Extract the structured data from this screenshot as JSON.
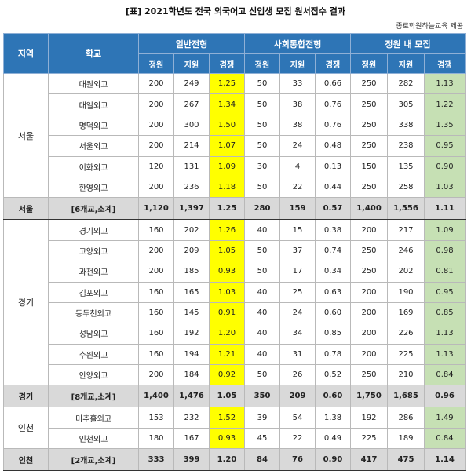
{
  "title": "[표] 2021학년도 전국 외국어고 신입생 모집 원서접수 결과",
  "source": "종로학원하늘교육 제공",
  "headers": {
    "region": "지역",
    "school": "학교",
    "groups": [
      "일반전형",
      "사회통합전형",
      "정원 내 모집"
    ],
    "sub": [
      "정원",
      "지원",
      "경쟁"
    ]
  },
  "colors": {
    "header_bg": "#2e75b6",
    "highlight_yellow": "#ffff00",
    "highlight_green": "#c6e0b4",
    "subtotal_bg": "#d9d9d9"
  },
  "regions": [
    {
      "name": "서울",
      "schools": [
        {
          "name": "대원외고",
          "g": [
            "200",
            "249",
            "1.25"
          ],
          "s": [
            "50",
            "33",
            "0.66"
          ],
          "t": [
            "250",
            "282",
            "1.13"
          ]
        },
        {
          "name": "대일외고",
          "g": [
            "200",
            "267",
            "1.34"
          ],
          "s": [
            "50",
            "38",
            "0.76"
          ],
          "t": [
            "250",
            "305",
            "1.22"
          ]
        },
        {
          "name": "명덕외고",
          "g": [
            "200",
            "300",
            "1.50"
          ],
          "s": [
            "50",
            "38",
            "0.76"
          ],
          "t": [
            "250",
            "338",
            "1.35"
          ]
        },
        {
          "name": "서울외고",
          "g": [
            "200",
            "214",
            "1.07"
          ],
          "s": [
            "50",
            "24",
            "0.48"
          ],
          "t": [
            "250",
            "238",
            "0.95"
          ]
        },
        {
          "name": "이화외고",
          "g": [
            "120",
            "131",
            "1.09"
          ],
          "s": [
            "30",
            "4",
            "0.13"
          ],
          "t": [
            "150",
            "135",
            "0.90"
          ]
        },
        {
          "name": "한영외고",
          "g": [
            "200",
            "236",
            "1.18"
          ],
          "s": [
            "50",
            "22",
            "0.44"
          ],
          "t": [
            "250",
            "258",
            "1.03"
          ]
        }
      ],
      "subtotal": {
        "region": "서울",
        "label": "[6개교,소계]",
        "g": [
          "1,120",
          "1,397",
          "1.25"
        ],
        "s": [
          "280",
          "159",
          "0.57"
        ],
        "t": [
          "1,400",
          "1,556",
          "1.11"
        ]
      }
    },
    {
      "name": "경기",
      "schools": [
        {
          "name": "경기외고",
          "g": [
            "160",
            "202",
            "1.26"
          ],
          "s": [
            "40",
            "15",
            "0.38"
          ],
          "t": [
            "200",
            "217",
            "1.09"
          ]
        },
        {
          "name": "고양외고",
          "g": [
            "200",
            "209",
            "1.05"
          ],
          "s": [
            "50",
            "37",
            "0.74"
          ],
          "t": [
            "250",
            "246",
            "0.98"
          ]
        },
        {
          "name": "과천외고",
          "g": [
            "200",
            "185",
            "0.93"
          ],
          "s": [
            "50",
            "17",
            "0.34"
          ],
          "t": [
            "250",
            "202",
            "0.81"
          ]
        },
        {
          "name": "김포외고",
          "g": [
            "160",
            "165",
            "1.03"
          ],
          "s": [
            "40",
            "25",
            "0.63"
          ],
          "t": [
            "200",
            "190",
            "0.95"
          ]
        },
        {
          "name": "동두천외고",
          "g": [
            "160",
            "145",
            "0.91"
          ],
          "s": [
            "40",
            "24",
            "0.60"
          ],
          "t": [
            "200",
            "169",
            "0.85"
          ]
        },
        {
          "name": "성남외고",
          "g": [
            "160",
            "192",
            "1.20"
          ],
          "s": [
            "40",
            "34",
            "0.85"
          ],
          "t": [
            "200",
            "226",
            "1.13"
          ]
        },
        {
          "name": "수원외고",
          "g": [
            "160",
            "194",
            "1.21"
          ],
          "s": [
            "40",
            "31",
            "0.78"
          ],
          "t": [
            "200",
            "225",
            "1.13"
          ]
        },
        {
          "name": "안양외고",
          "g": [
            "200",
            "184",
            "0.92"
          ],
          "s": [
            "50",
            "26",
            "0.52"
          ],
          "t": [
            "250",
            "210",
            "0.84"
          ]
        }
      ],
      "subtotal": {
        "region": "경기",
        "label": "[8개교,소계]",
        "g": [
          "1,400",
          "1,476",
          "1.05"
        ],
        "s": [
          "350",
          "209",
          "0.60"
        ],
        "t": [
          "1,750",
          "1,685",
          "0.96"
        ]
      }
    },
    {
      "name": "인천",
      "schools": [
        {
          "name": "미추홀외고",
          "g": [
            "153",
            "232",
            "1.52"
          ],
          "s": [
            "39",
            "54",
            "1.38"
          ],
          "t": [
            "192",
            "286",
            "1.49"
          ]
        },
        {
          "name": "인천외고",
          "g": [
            "180",
            "167",
            "0.93"
          ],
          "s": [
            "45",
            "22",
            "0.49"
          ],
          "t": [
            "225",
            "189",
            "0.84"
          ]
        }
      ],
      "subtotal": {
        "region": "인천",
        "label": "[2개교,소계]",
        "g": [
          "333",
          "399",
          "1.20"
        ],
        "s": [
          "84",
          "76",
          "0.90"
        ],
        "t": [
          "417",
          "475",
          "1.14"
        ]
      }
    }
  ]
}
